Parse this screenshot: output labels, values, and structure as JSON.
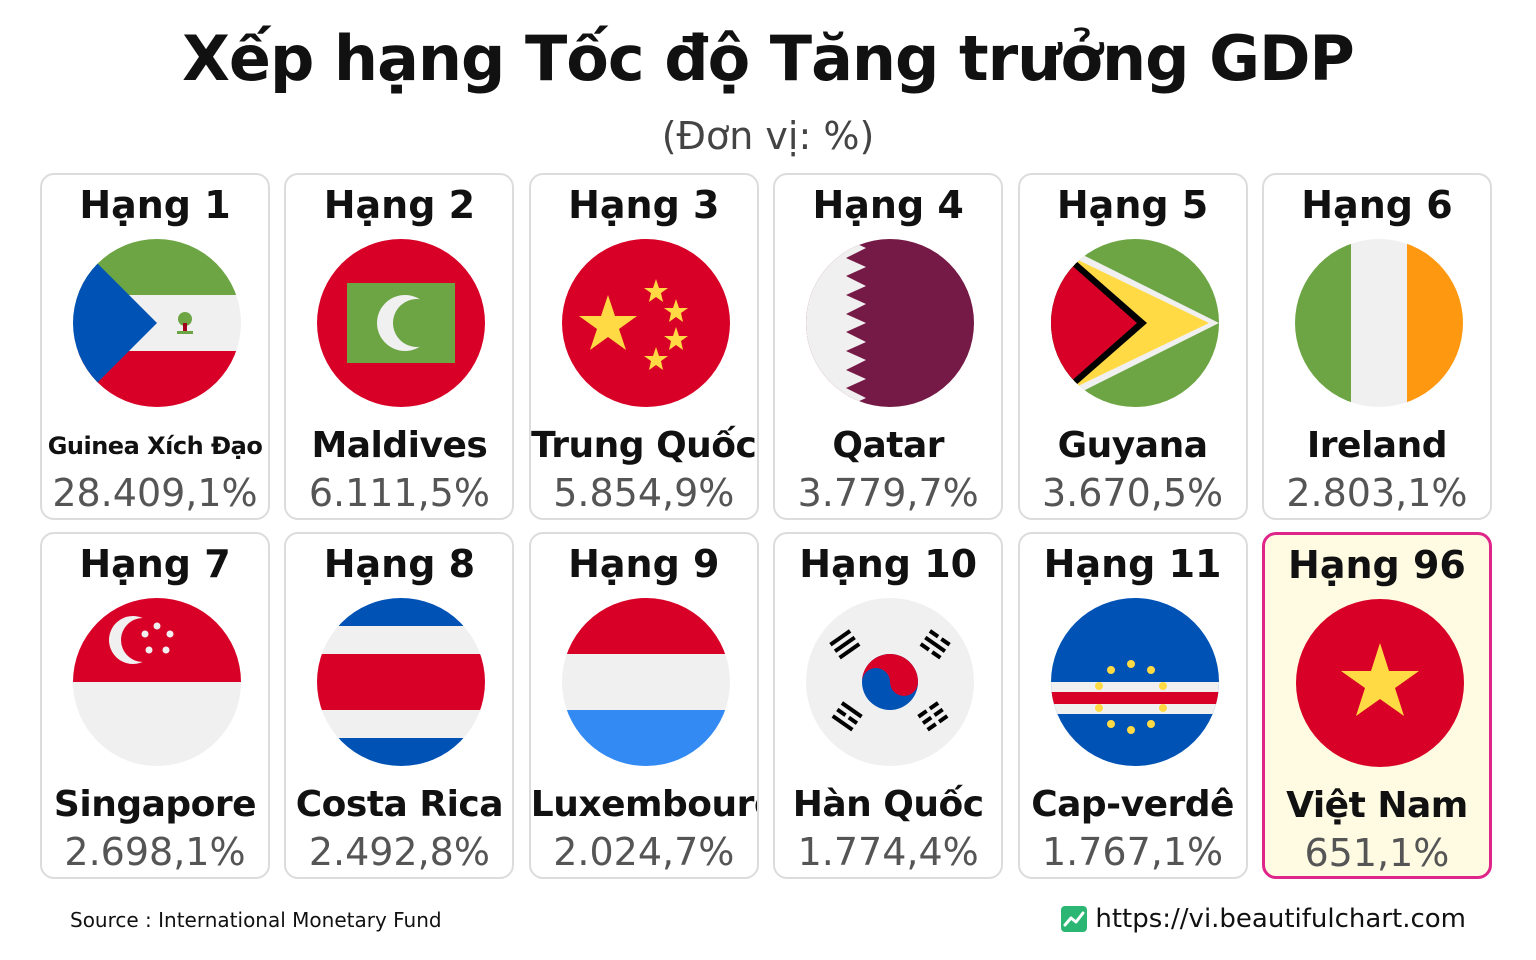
{
  "header": {
    "title": "Xếp hạng Tốc độ Tăng trưởng GDP",
    "subtitle": "(Đơn vị: %)"
  },
  "chart_data": {
    "type": "table",
    "title": "Xếp hạng Tốc độ Tăng trưởng GDP",
    "unit": "(Đơn vị: %)",
    "rows": [
      {
        "rank": "Hạng 1",
        "country": "Guinea Xích Đạo",
        "value": "28.409,1%",
        "flag": "equatorial-guinea-flag"
      },
      {
        "rank": "Hạng 2",
        "country": "Maldives",
        "value": "6.111,5%",
        "flag": "maldives-flag"
      },
      {
        "rank": "Hạng 3",
        "country": "Trung Quốc",
        "value": "5.854,9%",
        "flag": "china-flag"
      },
      {
        "rank": "Hạng 4",
        "country": "Qatar",
        "value": "3.779,7%",
        "flag": "qatar-flag"
      },
      {
        "rank": "Hạng 5",
        "country": "Guyana",
        "value": "3.670,5%",
        "flag": "guyana-flag"
      },
      {
        "rank": "Hạng 6",
        "country": "Ireland",
        "value": "2.803,1%",
        "flag": "ireland-flag"
      },
      {
        "rank": "Hạng 7",
        "country": "Singapore",
        "value": "2.698,1%",
        "flag": "singapore-flag"
      },
      {
        "rank": "Hạng 8",
        "country": "Costa Rica",
        "value": "2.492,8%",
        "flag": "costa-rica-flag"
      },
      {
        "rank": "Hạng 9",
        "country": "Luxembourg",
        "value": "2.024,7%",
        "flag": "luxembourg-flag"
      },
      {
        "rank": "Hạng 10",
        "country": "Hàn Quốc",
        "value": "1.774,4%",
        "flag": "south-korea-flag"
      },
      {
        "rank": "Hạng 11",
        "country": "Cap-verdê",
        "value": "1.767,1%",
        "flag": "cape-verde-flag"
      },
      {
        "rank": "Hạng 96",
        "country": "Việt Nam",
        "value": "651,1%",
        "flag": "vietnam-flag"
      }
    ],
    "highlight_color": "#e0258a"
  },
  "footer": {
    "source": "Source : International Monetary Fund",
    "link": "https://vi.beautifulchart.com",
    "logo_icon": "beautifulchart-logo-icon"
  }
}
